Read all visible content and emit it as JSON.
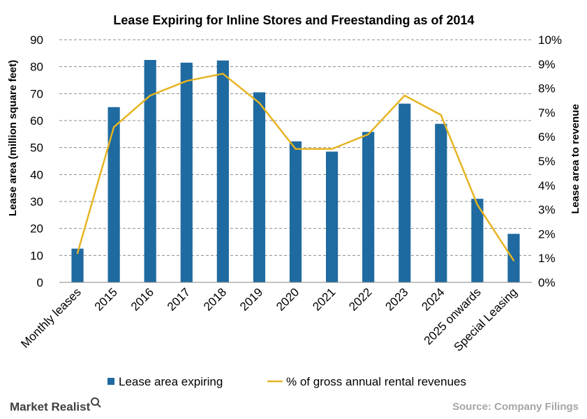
{
  "chart_data": {
    "type": "bar",
    "title": "Lease Expiring  for Inline Stores and Freestanding as of 2014",
    "categories": [
      "Monthly leases",
      "2015",
      "2016",
      "2017",
      "2018",
      "2019",
      "2020",
      "2021",
      "2022",
      "2023",
      "2024",
      "2025 onwards",
      "Special Leasing"
    ],
    "series": [
      {
        "name": "Lease area expiring",
        "kind": "bar",
        "axis": "left",
        "color": "#1f6aa0",
        "values": [
          12.5,
          65,
          82.5,
          81.5,
          82.3,
          70.5,
          52.3,
          48.5,
          55.8,
          66.3,
          58.8,
          31,
          18
        ]
      },
      {
        "name": "% of gross annual rental revenues",
        "kind": "line",
        "axis": "right",
        "color": "#e6b422",
        "values": [
          1.2,
          6.4,
          7.7,
          8.3,
          8.6,
          7.4,
          5.5,
          5.5,
          6.1,
          7.7,
          6.9,
          3.2,
          0.9
        ]
      }
    ],
    "ylabel": "Lease area (million square feet)",
    "y2label": "Lease area to revenue",
    "ylim": [
      0,
      90
    ],
    "y2lim": [
      0,
      10
    ],
    "yticks": [
      "0",
      "10",
      "20",
      "30",
      "40",
      "50",
      "60",
      "70",
      "80",
      "90"
    ],
    "y2ticks": [
      "0%",
      "1%",
      "2%",
      "3%",
      "4%",
      "5%",
      "6%",
      "7%",
      "8%",
      "9%",
      "10%"
    ],
    "grid": "horizontal dashed",
    "legend": "bottom"
  },
  "footer": {
    "brand": "Market Realist",
    "source": "Source: Company Filings"
  }
}
